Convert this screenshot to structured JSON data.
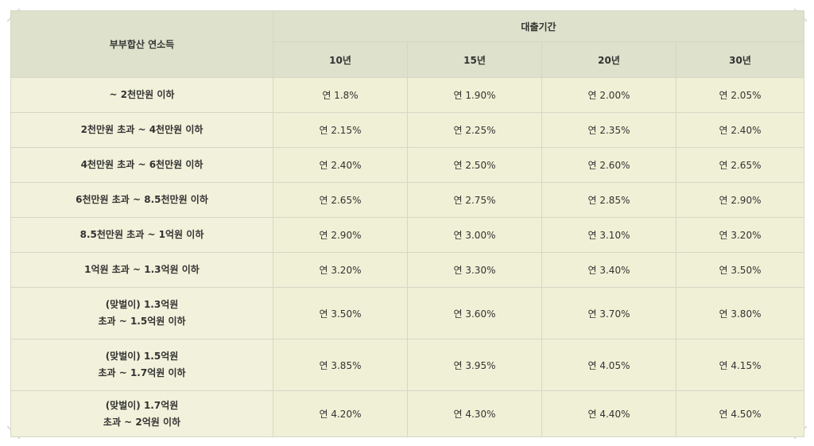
{
  "table": {
    "header": {
      "income": "부부합산 연소득",
      "period": "대출기간",
      "terms": [
        "10년",
        "15년",
        "20년",
        "30년"
      ]
    },
    "rows": [
      {
        "income": [
          "~ 2천만원 이하"
        ],
        "rates": [
          "연 1.8%",
          "연 1.90%",
          "연 2.00%",
          "연 2.05%"
        ]
      },
      {
        "income": [
          "2천만원 초과 ~ 4천만원 이하"
        ],
        "rates": [
          "연 2.15%",
          "연 2.25%",
          "연 2.35%",
          "연 2.40%"
        ]
      },
      {
        "income": [
          "4천만원 초과 ~ 6천만원 이하"
        ],
        "rates": [
          "연 2.40%",
          "연 2.50%",
          "연 2.60%",
          "연 2.65%"
        ]
      },
      {
        "income": [
          "6천만원 초과 ~ 8.5천만원 이하"
        ],
        "rates": [
          "연 2.65%",
          "연 2.75%",
          "연 2.85%",
          "연 2.90%"
        ]
      },
      {
        "income": [
          "8.5천만원 초과 ~ 1억원 이하"
        ],
        "rates": [
          "연 2.90%",
          "연 3.00%",
          "연 3.10%",
          "연 3.20%"
        ]
      },
      {
        "income": [
          "1억원 초과 ~ 1.3억원 이하"
        ],
        "rates": [
          "연 3.20%",
          "연 3.30%",
          "연 3.40%",
          "연 3.50%"
        ]
      },
      {
        "income": [
          "(맞벌이) 1.3억원",
          "초과 ~ 1.5억원 이하"
        ],
        "rates": [
          "연 3.50%",
          "연 3.60%",
          "연 3.70%",
          "연 3.80%"
        ]
      },
      {
        "income": [
          "(맞벌이) 1.5억원",
          "초과 ~ 1.7억원 이하"
        ],
        "rates": [
          "연 3.85%",
          "연 3.95%",
          "연 4.05%",
          "연 4.15%"
        ]
      },
      {
        "income": [
          "(맞벌이) 1.7억원",
          "초과 ~ 2억원 이하"
        ],
        "rates": [
          "연 4.20%",
          "연 4.30%",
          "연 4.40%",
          "연 4.50%"
        ]
      }
    ]
  }
}
